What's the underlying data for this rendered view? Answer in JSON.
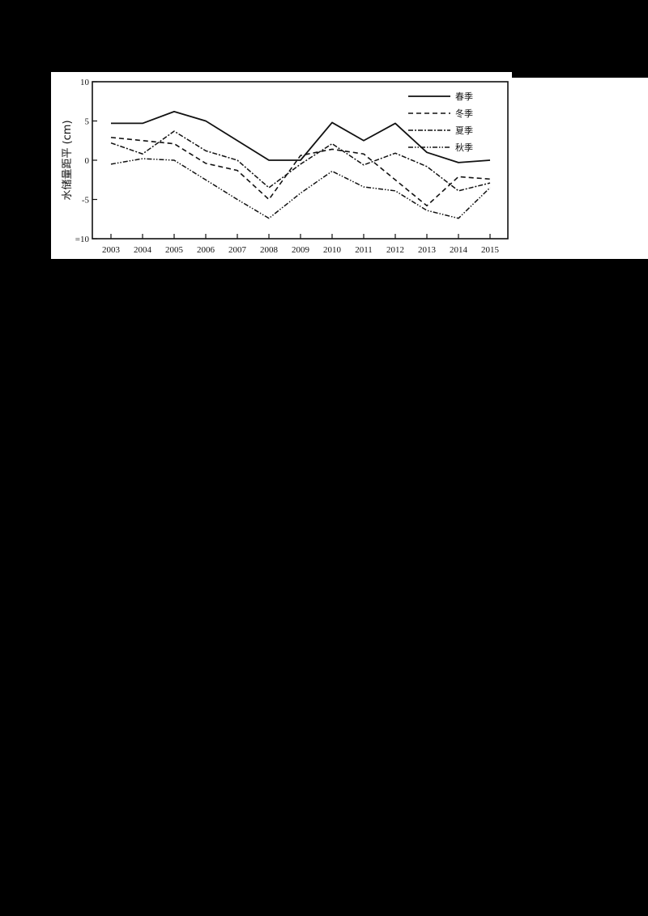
{
  "chart_data": {
    "type": "line",
    "title": "",
    "xlabel": "",
    "ylabel": "水储量距平 (cm)",
    "ylim": [
      -10,
      10
    ],
    "yticks": [
      10,
      5,
      0,
      -5,
      -10
    ],
    "ytick_labels": [
      "10",
      "5",
      "0",
      "-5",
      "=10"
    ],
    "grid": false,
    "legend_position": "upper right",
    "categories": [
      "2003",
      "2004",
      "2005",
      "2006",
      "2007",
      "2008",
      "2009",
      "2010",
      "2011",
      "2012",
      "2013",
      "2014",
      "2015"
    ],
    "series": [
      {
        "name": "春季",
        "style": "solid",
        "values": [
          4.7,
          4.7,
          6.2,
          5.0,
          2.5,
          0.0,
          0.0,
          4.8,
          2.5,
          4.7,
          1.0,
          -0.3,
          0.0
        ]
      },
      {
        "name": "冬季",
        "style": "dashed",
        "values": [
          2.9,
          2.5,
          2.1,
          -0.4,
          -1.3,
          -5.0,
          0.6,
          1.4,
          0.8,
          -2.5,
          -5.8,
          -2.1,
          -2.4
        ]
      },
      {
        "name": "夏季",
        "style": "dash-dot",
        "values": [
          2.2,
          0.8,
          3.7,
          1.2,
          0.0,
          -3.5,
          -0.5,
          2.1,
          -0.6,
          0.9,
          -0.8,
          -3.9,
          -2.9
        ]
      },
      {
        "name": "秋季",
        "style": "dash-dot-dot",
        "values": [
          -0.5,
          0.2,
          0.0,
          -2.5,
          -5.0,
          -7.4,
          -4.2,
          -1.4,
          -3.4,
          -3.9,
          -6.4,
          -7.4,
          -3.5
        ]
      }
    ]
  },
  "axis": {
    "ylabel": "水储量距平 (cm)"
  },
  "legend": [
    "春季",
    "冬季",
    "夏季",
    "秋季"
  ]
}
